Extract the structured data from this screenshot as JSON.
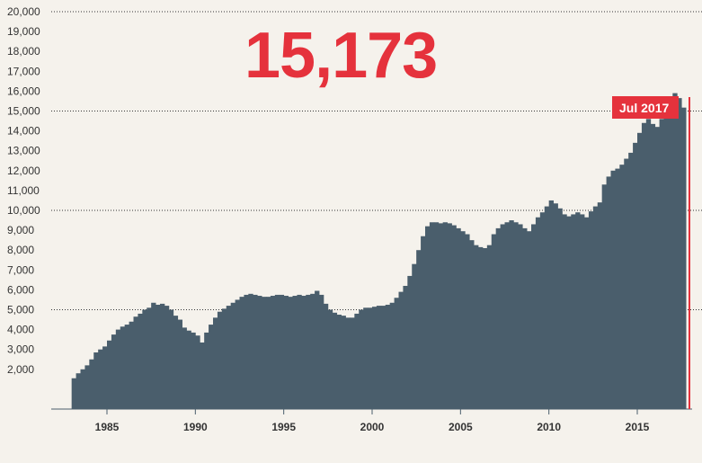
{
  "headline_value": "15,173",
  "callout_label": "Jul 2017",
  "colors": {
    "bars": "#4a5e6c",
    "accent": "#e5323c",
    "background": "#f5f2ec",
    "grid": "#333333"
  },
  "chart_data": {
    "type": "area",
    "title": "",
    "xlabel": "",
    "ylabel": "",
    "xlim": [
      1982.0,
      2018.0
    ],
    "ylim": [
      0,
      20000
    ],
    "y_ticks": [
      "2,000",
      "3,000",
      "4,000",
      "5,000",
      "6,000",
      "7,000",
      "8,000",
      "9,000",
      "10,000",
      "11,000",
      "12,000",
      "13,000",
      "14,000",
      "15,000",
      "16,000",
      "17,000",
      "18,000",
      "19,000",
      "20,000"
    ],
    "y_tick_values": [
      2000,
      3000,
      4000,
      5000,
      6000,
      7000,
      8000,
      9000,
      10000,
      11000,
      12000,
      13000,
      14000,
      15000,
      16000,
      17000,
      18000,
      19000,
      20000
    ],
    "dotted_gridlines": [
      5000,
      10000,
      15000,
      20000
    ],
    "x_ticks": [
      "1985",
      "1990",
      "1995",
      "2000",
      "2005",
      "2010",
      "2015"
    ],
    "x_tick_values": [
      1985,
      1990,
      1995,
      2000,
      2005,
      2010,
      2015
    ],
    "grid": "dotted horizontal at 5,000 intervals",
    "series": [
      {
        "x": [
          1983.0,
          1983.25,
          1983.5,
          1983.75,
          1984.0,
          1984.25,
          1984.5,
          1984.75,
          1985.0,
          1985.25,
          1985.5,
          1985.75,
          1986.0,
          1986.25,
          1986.5,
          1986.75,
          1987.0,
          1987.25,
          1987.5,
          1987.75,
          1988.0,
          1988.25,
          1988.5,
          1988.75,
          1989.0,
          1989.25,
          1989.5,
          1989.75,
          1990.0,
          1990.25,
          1990.5,
          1990.75,
          1991.0,
          1991.25,
          1991.5,
          1991.75,
          1992.0,
          1992.25,
          1992.5,
          1992.75,
          1993.0,
          1993.25,
          1993.5,
          1993.75,
          1994.0,
          1994.25,
          1994.5,
          1994.75,
          1995.0,
          1995.25,
          1995.5,
          1995.75,
          1996.0,
          1996.25,
          1996.5,
          1996.75,
          1997.0,
          1997.25,
          1997.5,
          1997.75,
          1998.0,
          1998.25,
          1998.5,
          1998.75,
          1999.0,
          1999.25,
          1999.5,
          1999.75,
          2000.0,
          2000.25,
          2000.5,
          2000.75,
          2001.0,
          2001.25,
          2001.5,
          2001.75,
          2002.0,
          2002.25,
          2002.5,
          2002.75,
          2003.0,
          2003.25,
          2003.5,
          2003.75,
          2004.0,
          2004.25,
          2004.5,
          2004.75,
          2005.0,
          2005.25,
          2005.5,
          2005.75,
          2006.0,
          2006.25,
          2006.5,
          2006.75,
          2007.0,
          2007.25,
          2007.5,
          2007.75,
          2008.0,
          2008.25,
          2008.5,
          2008.75,
          2009.0,
          2009.25,
          2009.5,
          2009.75,
          2010.0,
          2010.25,
          2010.5,
          2010.75,
          2011.0,
          2011.25,
          2011.5,
          2011.75,
          2012.0,
          2012.25,
          2012.5,
          2012.75,
          2013.0,
          2013.25,
          2013.5,
          2013.75,
          2014.0,
          2014.25,
          2014.5,
          2014.75,
          2015.0,
          2015.25,
          2015.5,
          2015.75,
          2016.0,
          2016.25,
          2016.5,
          2016.75,
          2017.0,
          2017.25,
          2017.5
        ],
        "values": [
          1550,
          1800,
          2000,
          2200,
          2500,
          2850,
          3000,
          3150,
          3450,
          3750,
          4000,
          4150,
          4250,
          4400,
          4650,
          4800,
          5000,
          5100,
          5350,
          5250,
          5300,
          5200,
          5000,
          4700,
          4500,
          4100,
          3950,
          3850,
          3700,
          3350,
          3850,
          4250,
          4600,
          4900,
          5050,
          5200,
          5350,
          5500,
          5650,
          5750,
          5800,
          5750,
          5700,
          5650,
          5650,
          5700,
          5750,
          5750,
          5700,
          5650,
          5700,
          5750,
          5700,
          5750,
          5800,
          5950,
          5750,
          5300,
          5000,
          4850,
          4750,
          4700,
          4600,
          4600,
          4800,
          5000,
          5100,
          5100,
          5150,
          5200,
          5200,
          5250,
          5350,
          5600,
          5900,
          6200,
          6700,
          7300,
          8000,
          8700,
          9200,
          9400,
          9400,
          9350,
          9400,
          9350,
          9250,
          9100,
          8950,
          8800,
          8500,
          8250,
          8150,
          8100,
          8250,
          8800,
          9100,
          9300,
          9400,
          9500,
          9400,
          9300,
          9100,
          8950,
          9300,
          9650,
          9900,
          10200,
          10500,
          10350,
          10100,
          9800,
          9700,
          9800,
          9900,
          9800,
          9650,
          9950,
          10200,
          10400,
          11300,
          11700,
          12000,
          12100,
          12300,
          12600,
          12900,
          13400,
          13900,
          14400,
          14600,
          14350,
          14200,
          14600,
          15100,
          15500,
          15900,
          15650,
          15173
        ]
      }
    ]
  }
}
